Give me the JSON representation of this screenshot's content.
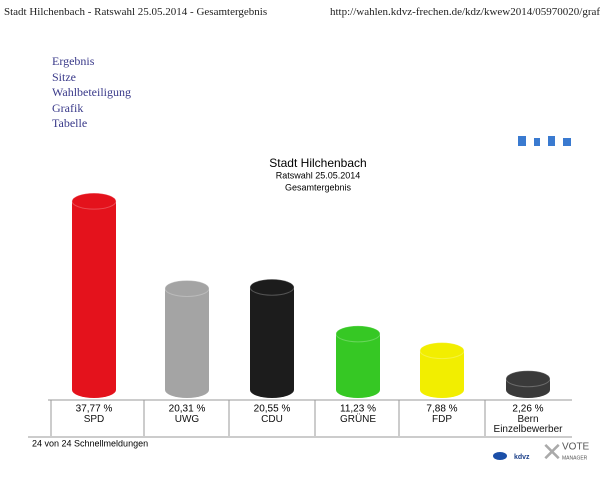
{
  "header": {
    "title": "Stadt Hilchenbach - Ratswahl 25.05.2014 - Gesamtergebnis",
    "url": "http://wahlen.kdvz-frechen.de/kdz/kwew2014/05970020/graf"
  },
  "nav": [
    "Ergebnis",
    "Sitze",
    "Wahlbeteiligung",
    "Grafik",
    "Tabelle"
  ],
  "chart_data": {
    "type": "bar",
    "title": "Stadt Hilchenbach",
    "subtitle": "Ratswahl 25.05.2014",
    "subtitle2": "Gesamtergebnis",
    "categories": [
      "SPD",
      "UWG",
      "CDU",
      "GRÜNE",
      "FDP",
      "Bern Einzelbewerber"
    ],
    "values": [
      37.77,
      20.31,
      20.55,
      11.23,
      7.88,
      2.26
    ],
    "value_labels": [
      "37,77 %",
      "20,31 %",
      "20,55 %",
      "11,23 %",
      "7,88 %",
      "2,26 %"
    ],
    "colors": [
      "#e4121c",
      "#a4a4a4",
      "#1c1c1c",
      "#36c824",
      "#f2ee00",
      "#3a3a3a"
    ]
  },
  "footer": {
    "note": "24 von 24 Schnellmeldungen",
    "logo1": "kdvz",
    "logo2": "VOTE",
    "logo3": "MANAGER"
  }
}
